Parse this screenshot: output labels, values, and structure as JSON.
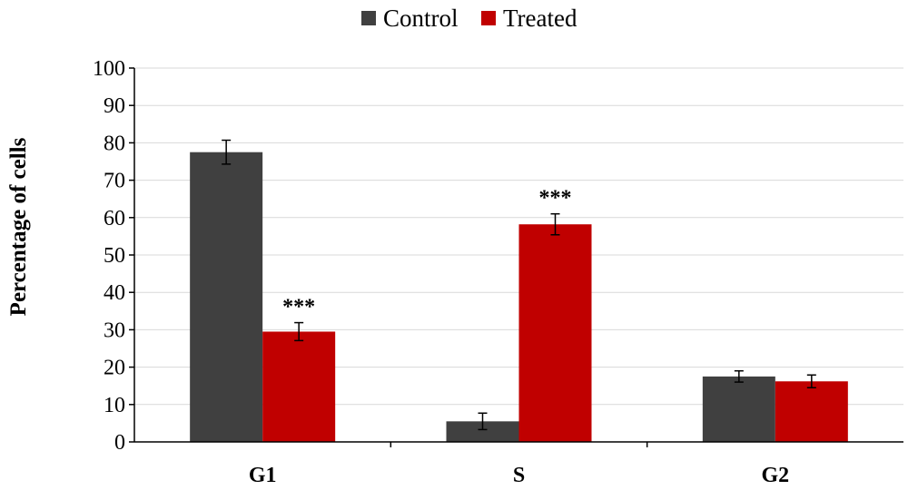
{
  "chart_data": {
    "type": "bar",
    "categories": [
      "G1",
      "S",
      "G2"
    ],
    "series": [
      {
        "name": "Control",
        "color": "#404040",
        "values": [
          77.5,
          5.5,
          17.5
        ],
        "errors": [
          3.2,
          2.2,
          1.5
        ],
        "annotations": [
          "",
          "",
          ""
        ]
      },
      {
        "name": "Treated",
        "color": "#c00000",
        "values": [
          29.5,
          58.2,
          16.2
        ],
        "errors": [
          2.4,
          2.8,
          1.7
        ],
        "annotations": [
          "***",
          "***",
          ""
        ]
      }
    ],
    "xlabel": "",
    "ylabel": "Percentage of cells",
    "ylim": [
      0,
      100
    ],
    "yticks": [
      0,
      10,
      20,
      30,
      40,
      50,
      60,
      70,
      80,
      90,
      100
    ],
    "grid": true,
    "legend_position": "top-center"
  }
}
